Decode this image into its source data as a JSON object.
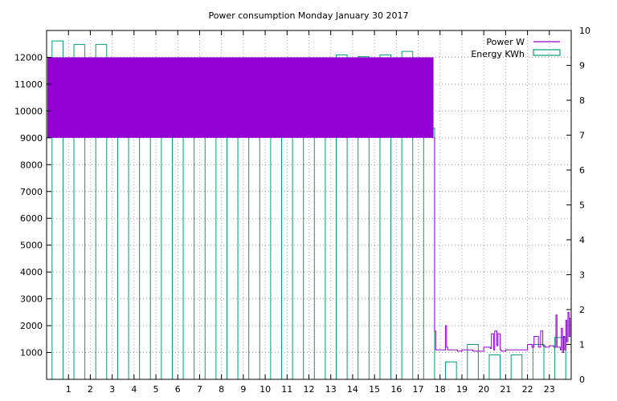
{
  "chart_data": {
    "type": "bar",
    "title": "Power consumption Monday January 30 2017",
    "xlabel": "",
    "ylabel": "",
    "grid": true,
    "legend_position": "top-right",
    "x_range": [
      0,
      24
    ],
    "y_range": [
      0,
      13000
    ],
    "y2_range": [
      0,
      10
    ],
    "x_ticks": [
      1,
      2,
      3,
      4,
      5,
      6,
      7,
      8,
      9,
      10,
      11,
      12,
      13,
      14,
      15,
      16,
      17,
      18,
      19,
      20,
      21,
      22,
      23
    ],
    "y_ticks": [
      1000,
      2000,
      3000,
      4000,
      5000,
      6000,
      7000,
      8000,
      9000,
      10000,
      11000,
      12000
    ],
    "y2_ticks": [
      0,
      1,
      2,
      3,
      4,
      5,
      6,
      7,
      8,
      9,
      10
    ],
    "colors": {
      "power": "#9400d3",
      "energy": "#009e73"
    },
    "series": [
      {
        "name": "Energy KWh",
        "type": "bar",
        "axis": "y2",
        "x": [
          0,
          1,
          2,
          3,
          4,
          5,
          6,
          7,
          8,
          9,
          10,
          11,
          12,
          13,
          14,
          15,
          16,
          17,
          18,
          19,
          20,
          21,
          22,
          23
        ],
        "values": [
          9.7,
          9.6,
          9.6,
          9.2,
          9.15,
          8.6,
          9.05,
          8.5,
          9.2,
          8.8,
          8.6,
          8.8,
          9.2,
          9.3,
          9.25,
          9.3,
          9.4,
          7.2,
          0.5,
          1.0,
          0.7,
          0.7,
          1.0,
          1.2
        ]
      },
      {
        "name": "Power W",
        "type": "line",
        "axis": "y",
        "band_hours": [
          0,
          17.7
        ],
        "band_low": 9000,
        "band_high": 12000,
        "x": [
          17.7,
          17.75,
          17.8,
          18.2,
          18.25,
          18.3,
          18.35,
          18.5,
          18.8,
          19.0,
          19.5,
          19.8,
          20.0,
          20.3,
          20.35,
          20.45,
          20.5,
          20.6,
          20.65,
          20.75,
          20.8,
          21.0,
          21.5,
          21.8,
          22.0,
          22.2,
          22.3,
          22.5,
          22.6,
          22.7,
          22.8,
          23.0,
          23.2,
          23.3,
          23.35,
          23.5,
          23.55,
          23.6,
          23.65,
          23.7,
          23.75,
          23.8,
          23.85,
          23.9,
          23.95
        ],
        "values": [
          9000,
          1800,
          1100,
          1100,
          2000,
          1200,
          1100,
          1100,
          1050,
          1100,
          1050,
          1050,
          1200,
          1150,
          1700,
          1100,
          1800,
          1250,
          1700,
          1100,
          1050,
          1100,
          1100,
          1100,
          1300,
          1200,
          1600,
          1200,
          1800,
          1250,
          1200,
          1250,
          1200,
          2400,
          1200,
          1100,
          1900,
          1000,
          1600,
          1100,
          2200,
          1400,
          2500,
          1600,
          2300
        ]
      }
    ]
  }
}
